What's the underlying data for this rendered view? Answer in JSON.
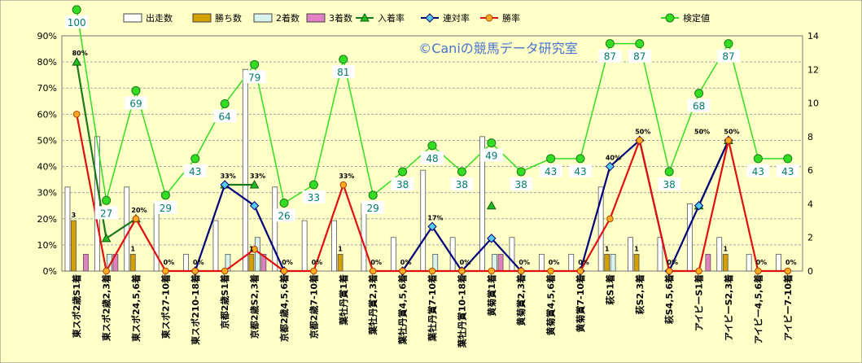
{
  "chart_data": {
    "type": "bar+line",
    "watermark": "©Caniの競馬データ研究室",
    "categories": [
      "東スポ2歳S1着",
      "東スポ2歳2,3着",
      "東スポ24,5,6着",
      "東スポ27-10着",
      "東スポ210-18着",
      "京都2歳S1着",
      "京都2歳S2,3着",
      "京都2歳4,5,6着",
      "京都2歳7-10着",
      "葉牡丹賞1着",
      "葉牡丹賞2,3着",
      "葉牡丹賞4,5,6着",
      "葉牡丹賞7-10着",
      "葉牡丹賞10-18着",
      "黄菊賞1着",
      "黄菊賞2,3着",
      "黄菊賞4,5,6着",
      "黄菊賞7-10着",
      "萩S1着",
      "萩S2,3着",
      "萩S4,5,6着",
      "アイビーS1着",
      "アイビーS2,3着",
      "アイビー4,5,6着",
      "アイビー7-10着"
    ],
    "y_left": {
      "min": 0,
      "max": 90,
      "step": 10,
      "ticks": [
        "0%",
        "10%",
        "20%",
        "30%",
        "40%",
        "50%",
        "60%",
        "70%",
        "80%",
        "90%"
      ]
    },
    "y_right": {
      "min": 0,
      "max": 14,
      "step": 2,
      "ticks": [
        "0",
        "2",
        "4",
        "6",
        "8",
        "10",
        "12",
        "14"
      ]
    },
    "legend": [
      "出走数",
      "勝ち数",
      "2着数",
      "3着数",
      "入着率",
      "連対率",
      "勝率",
      "検定値"
    ],
    "bars": [
      {
        "name": "出走数",
        "axis": "right",
        "color": "#ffffff",
        "values": [
          5,
          8,
          5,
          4,
          1,
          3,
          12,
          5,
          3,
          3,
          4,
          2,
          6,
          2,
          8,
          2,
          1,
          1,
          5,
          2,
          2,
          4,
          2,
          1,
          1
        ]
      },
      {
        "name": "勝ち数",
        "axis": "right",
        "color": "#d4a000",
        "values": [
          3,
          0,
          1,
          0,
          0,
          0,
          1,
          0,
          0,
          1,
          0,
          0,
          0,
          0,
          0,
          0,
          0,
          0,
          1,
          1,
          0,
          0,
          1,
          0,
          0
        ]
      },
      {
        "name": "2着数",
        "axis": "right",
        "color": "#d8f2ee",
        "values": [
          0,
          1,
          0,
          0,
          0,
          1,
          2,
          0,
          0,
          0,
          0,
          0,
          1,
          0,
          1,
          0,
          0,
          0,
          1,
          0,
          0,
          0,
          0,
          0,
          0
        ]
      },
      {
        "name": "3着数",
        "axis": "right",
        "color": "#e080c0",
        "values": [
          1,
          1,
          0,
          0,
          0,
          0,
          1,
          0,
          0,
          0,
          0,
          0,
          0,
          0,
          1,
          0,
          0,
          0,
          0,
          0,
          0,
          1,
          0,
          0,
          0
        ]
      }
    ],
    "count_labels": [
      {
        "series": "勝ち数",
        "index": 0,
        "text": "3"
      },
      {
        "series": "勝ち数",
        "index": 2,
        "text": "1"
      },
      {
        "series": "勝ち数",
        "index": 6,
        "text": "1"
      },
      {
        "series": "勝ち数",
        "index": 9,
        "text": "1"
      },
      {
        "series": "勝ち数",
        "index": 18,
        "text": "1"
      },
      {
        "series": "勝ち数",
        "index": 19,
        "text": "1"
      },
      {
        "series": "勝ち数",
        "index": 22,
        "text": "1"
      }
    ],
    "lines": [
      {
        "name": "入着率",
        "axis": "left",
        "color": "#1a7a1a",
        "marker": "triangle",
        "values": [
          80,
          12.5,
          20,
          null,
          null,
          33,
          33,
          null,
          null,
          null,
          null,
          null,
          null,
          null,
          25,
          null,
          null,
          null,
          null,
          null,
          null,
          25,
          50,
          null,
          null
        ]
      },
      {
        "name": "連対率",
        "axis": "left",
        "color": "#00007a",
        "marker": "diamond",
        "values": [
          null,
          null,
          null,
          null,
          0,
          33,
          25,
          0,
          null,
          null,
          null,
          0,
          17,
          0,
          12.5,
          0,
          null,
          0,
          40,
          50,
          0,
          25,
          50,
          null,
          null
        ]
      },
      {
        "name": "勝率",
        "axis": "left",
        "color": "#e01010",
        "marker": "circle",
        "values": [
          60,
          0,
          20,
          0,
          0,
          0,
          8.3,
          0,
          0,
          33,
          0,
          0,
          0,
          0,
          0,
          0,
          0,
          0,
          20,
          50,
          0,
          0,
          50,
          0,
          0
        ]
      },
      {
        "name": "検定値",
        "axis": "left",
        "color": "#33dd22",
        "marker": "circle",
        "values": [
          100,
          27,
          69,
          29,
          43,
          64,
          79,
          26,
          33,
          81,
          29,
          38,
          48,
          38,
          49,
          38,
          43,
          43,
          87,
          87,
          38,
          68,
          87,
          43,
          43
        ]
      }
    ],
    "rate_labels": [
      {
        "text": "80%",
        "index": 0,
        "value": 80
      },
      {
        "text": "20%",
        "index": 2,
        "value": 20
      },
      {
        "text": "0%",
        "index": 3,
        "value": 0
      },
      {
        "text": "0%",
        "index": 4,
        "value": 0
      },
      {
        "text": "33%",
        "index": 5,
        "value": 33
      },
      {
        "text": "33%",
        "index": 6,
        "value": 33
      },
      {
        "text": "0%",
        "index": 7,
        "value": 0
      },
      {
        "text": "0%",
        "index": 8,
        "value": 0
      },
      {
        "text": "33%",
        "index": 9,
        "value": 33
      },
      {
        "text": "0%",
        "index": 10,
        "value": 0
      },
      {
        "text": "0%",
        "index": 11,
        "value": 0
      },
      {
        "text": "17%",
        "index": 12,
        "value": 17
      },
      {
        "text": "0%",
        "index": 13,
        "value": 0
      },
      {
        "text": "0%",
        "index": 15,
        "value": 0
      },
      {
        "text": "0%",
        "index": 16,
        "value": 0
      },
      {
        "text": "0%",
        "index": 17,
        "value": 0
      },
      {
        "text": "40%",
        "index": 18,
        "value": 40
      },
      {
        "text": "50%",
        "index": 19,
        "value": 50
      },
      {
        "text": "0%",
        "index": 20,
        "value": 0
      },
      {
        "text": "50%",
        "index": 21,
        "value": 50
      },
      {
        "text": "50%",
        "index": 22,
        "value": 50
      },
      {
        "text": "0%",
        "index": 23,
        "value": 0
      },
      {
        "text": "0%",
        "index": 24,
        "value": 0
      }
    ]
  }
}
